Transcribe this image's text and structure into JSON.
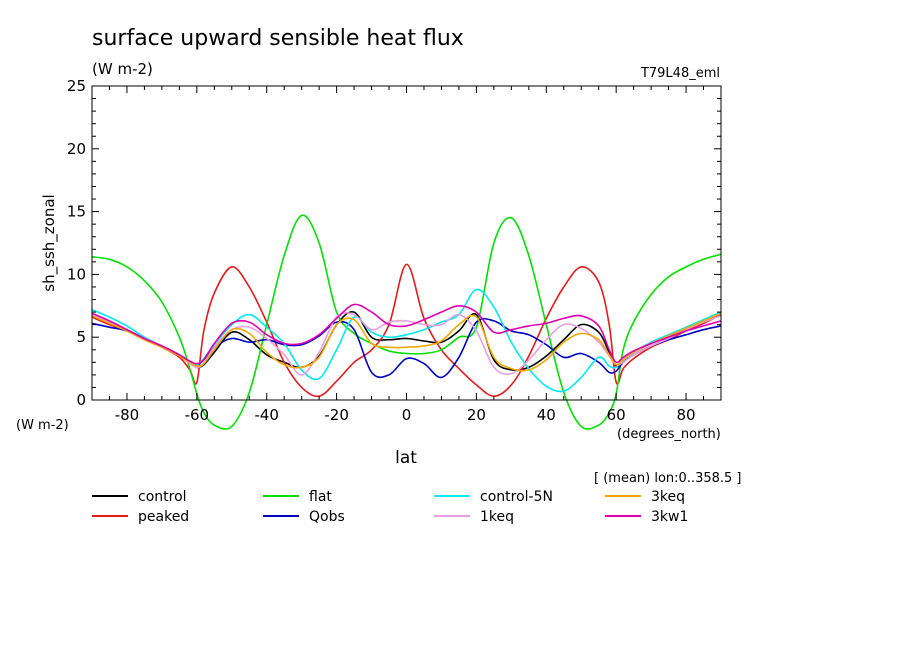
{
  "chart_data": {
    "type": "line",
    "title": "surface upward sensible heat flux",
    "units": "(W m-2)",
    "experiment": "T79L48_eml",
    "ylabel": "sh_ssh_zonal",
    "ylabel_units": "(W m-2)",
    "xlabel": "lat",
    "xlabel_units": "(degrees_north)",
    "annotation": "[ (mean) lon:0..358.5 ]",
    "xlim": [
      -90,
      90
    ],
    "ylim": [
      0,
      25
    ],
    "xticks": [
      "-80",
      "-60",
      "-40",
      "-20",
      "0",
      "20",
      "40",
      "60",
      "80"
    ],
    "yticks": [
      "0",
      "5",
      "10",
      "15",
      "20",
      "25"
    ],
    "grid": false,
    "legend_position": "bottom",
    "x": [
      -90,
      -85,
      -80,
      -75,
      -70,
      -65,
      -62,
      -60,
      -58,
      -55,
      -50,
      -45,
      -40,
      -35,
      -30,
      -25,
      -20,
      -15,
      -10,
      -5,
      0,
      5,
      10,
      15,
      20,
      25,
      30,
      35,
      40,
      45,
      50,
      55,
      58,
      60,
      62,
      65,
      70,
      75,
      80,
      85,
      90
    ],
    "series": [
      {
        "name": "control",
        "color": "#000000",
        "values": [
          6.8,
          6.2,
          5.6,
          4.9,
          4.3,
          3.6,
          3.0,
          2.6,
          2.8,
          3.8,
          5.4,
          4.8,
          3.6,
          3.0,
          2.6,
          3.5,
          6.0,
          7.0,
          5.0,
          4.8,
          4.9,
          4.7,
          4.6,
          5.5,
          6.8,
          3.2,
          2.4,
          2.6,
          3.5,
          4.8,
          6.0,
          5.4,
          3.8,
          2.7,
          3.0,
          3.6,
          4.3,
          4.9,
          5.6,
          6.2,
          6.8
        ]
      },
      {
        "name": "peaked",
        "color": "#e41a1c",
        "values": [
          6.6,
          6.0,
          5.5,
          4.8,
          4.2,
          3.4,
          2.4,
          1.4,
          5.5,
          8.5,
          10.6,
          9.0,
          6.2,
          3.0,
          1.0,
          0.3,
          1.5,
          3.0,
          4.0,
          6.0,
          10.8,
          6.5,
          4.0,
          2.5,
          1.2,
          0.3,
          1.2,
          3.5,
          6.5,
          9.0,
          10.6,
          9.4,
          6.0,
          1.4,
          2.5,
          3.3,
          4.2,
          4.8,
          5.5,
          6.1,
          6.8
        ]
      },
      {
        "name": "flat",
        "color": "#00e000",
        "values": [
          11.4,
          11.2,
          10.6,
          9.5,
          7.8,
          5.0,
          2.5,
          0.5,
          -1.0,
          -2.0,
          -2.1,
          0.6,
          6.0,
          11.5,
          14.7,
          12.5,
          7.0,
          5.3,
          4.5,
          3.9,
          3.7,
          3.7,
          4.0,
          5.0,
          5.8,
          12.5,
          14.5,
          11.5,
          6.0,
          0.6,
          -2.1,
          -2.0,
          -1.0,
          0.5,
          4.0,
          6.2,
          8.4,
          9.8,
          10.6,
          11.2,
          11.6
        ]
      },
      {
        "name": "Qobs",
        "color": "#0000c0",
        "values": [
          6.1,
          5.8,
          5.5,
          4.9,
          4.3,
          3.5,
          3.0,
          2.8,
          3.2,
          4.2,
          4.9,
          4.6,
          4.8,
          4.4,
          4.4,
          5.1,
          6.2,
          5.6,
          2.2,
          2.0,
          3.3,
          2.9,
          1.8,
          3.4,
          6.2,
          6.3,
          5.5,
          5.2,
          4.4,
          3.4,
          3.7,
          3.0,
          2.2,
          2.3,
          3.0,
          3.6,
          4.3,
          4.8,
          5.2,
          5.6,
          5.9
        ]
      },
      {
        "name": "control-5N",
        "color": "#00e8f0",
        "values": [
          7.2,
          6.6,
          5.9,
          5.0,
          4.3,
          3.6,
          3.0,
          2.8,
          3.3,
          4.4,
          6.0,
          6.8,
          5.8,
          4.5,
          2.4,
          1.7,
          4.0,
          6.6,
          5.4,
          5.0,
          5.2,
          5.6,
          6.2,
          6.8,
          8.8,
          7.4,
          4.6,
          2.5,
          1.1,
          0.7,
          1.8,
          3.4,
          2.7,
          2.6,
          3.2,
          3.8,
          4.6,
          5.2,
          5.8,
          6.4,
          7.0
        ]
      },
      {
        "name": "1keq",
        "color": "#e8a0e0",
        "values": [
          6.8,
          6.2,
          5.6,
          4.9,
          4.3,
          3.5,
          2.9,
          2.6,
          2.9,
          4.2,
          5.6,
          5.8,
          4.9,
          3.6,
          2.0,
          3.8,
          6.6,
          6.8,
          5.6,
          6.2,
          6.3,
          6.0,
          6.0,
          6.8,
          5.5,
          2.6,
          2.1,
          3.2,
          4.8,
          6.0,
          5.7,
          4.6,
          3.5,
          2.8,
          3.0,
          3.6,
          4.3,
          4.9,
          5.6,
          6.2,
          6.7
        ]
      },
      {
        "name": "3keq",
        "color": "#f0a800",
        "values": [
          6.7,
          6.1,
          5.5,
          4.8,
          4.2,
          3.5,
          3.0,
          2.7,
          2.9,
          4.0,
          5.6,
          5.3,
          3.8,
          2.8,
          2.6,
          3.4,
          6.0,
          6.4,
          4.5,
          4.2,
          4.2,
          4.3,
          4.7,
          6.0,
          6.6,
          3.4,
          2.5,
          2.4,
          3.2,
          4.6,
          5.3,
          4.8,
          3.6,
          2.8,
          3.2,
          3.8,
          4.5,
          5.1,
          5.7,
          6.3,
          6.9
        ]
      },
      {
        "name": "3kw1",
        "color": "#e000b0",
        "values": [
          6.9,
          6.3,
          5.6,
          4.9,
          4.3,
          3.6,
          3.1,
          2.9,
          3.2,
          4.5,
          6.1,
          6.2,
          5.2,
          4.5,
          4.5,
          5.2,
          6.5,
          7.6,
          7.0,
          6.0,
          5.9,
          6.4,
          7.0,
          7.5,
          7.0,
          5.4,
          5.6,
          5.9,
          6.1,
          6.5,
          6.7,
          5.9,
          4.0,
          3.0,
          3.4,
          3.9,
          4.5,
          5.0,
          5.5,
          5.9,
          6.3
        ]
      }
    ]
  }
}
